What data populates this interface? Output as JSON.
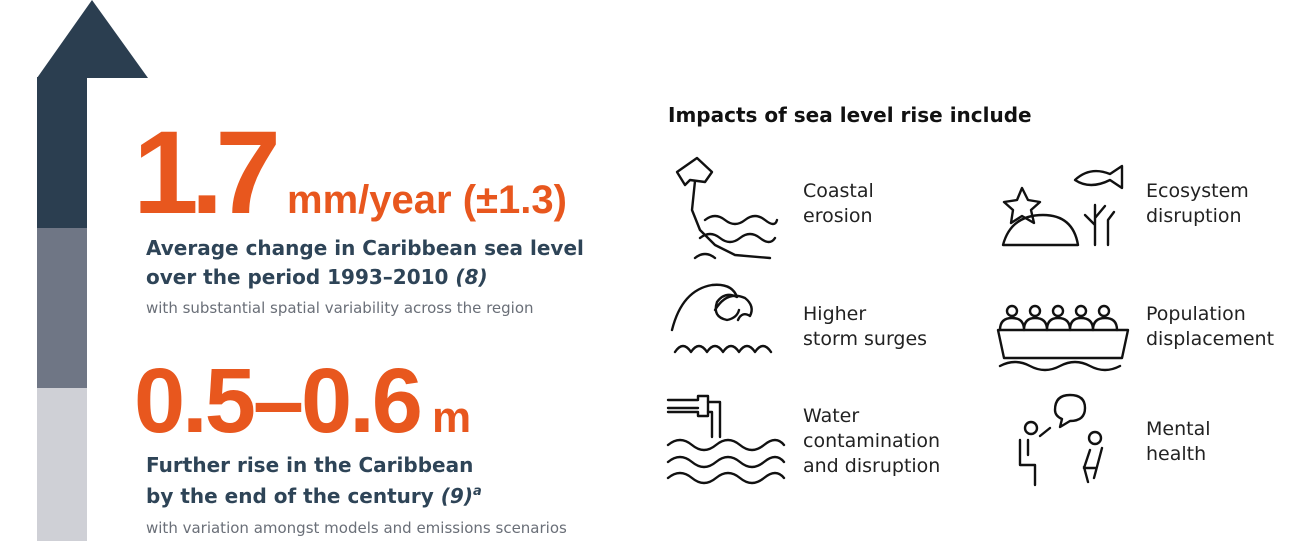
{
  "stats": [
    {
      "value": "1.7",
      "unit": "mm/year (±1.3)",
      "headline": [
        "Average change in Caribbean sea level",
        "over the period 1993–2010"
      ],
      "ref": "(8)",
      "note": "with substantial spatial variability across the region"
    },
    {
      "value": "0.5–0.6",
      "unit": "m",
      "headline": [
        "Further rise in the Caribbean",
        "by the end of the century"
      ],
      "ref": "(9)",
      "footnote": "a",
      "note": "with variation amongst models and emissions scenarios"
    }
  ],
  "impacts": {
    "title": "Impacts of sea level rise include",
    "items": [
      {
        "lines": [
          "Coastal",
          "erosion"
        ]
      },
      {
        "lines": [
          "Ecosystem",
          "disruption"
        ]
      },
      {
        "lines": [
          "Higher",
          "storm surges"
        ]
      },
      {
        "lines": [
          "Population",
          "displacement"
        ]
      },
      {
        "lines": [
          "Water",
          "contamination",
          "and disruption"
        ]
      },
      {
        "lines": [
          "Mental",
          "health"
        ]
      }
    ]
  }
}
